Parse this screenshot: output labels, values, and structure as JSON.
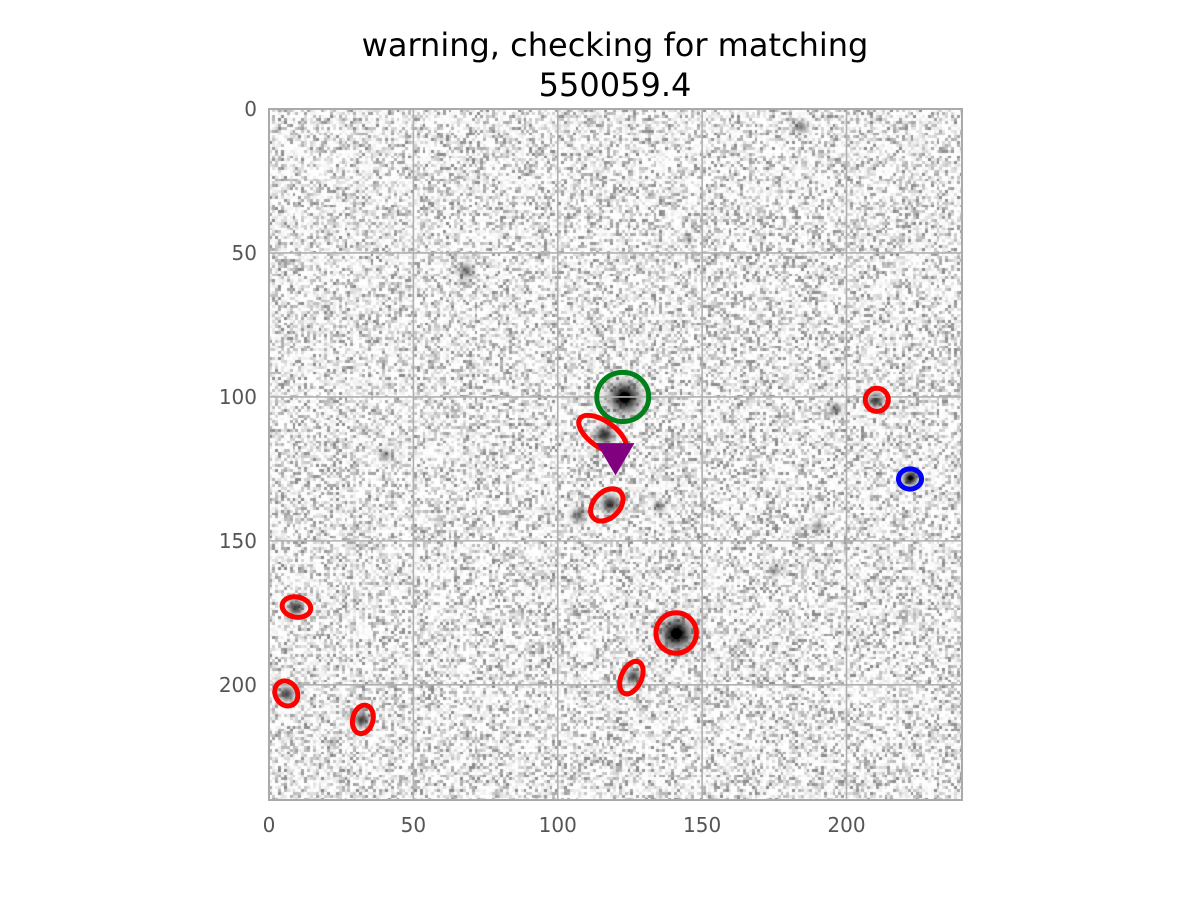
{
  "chart_data": {
    "type": "scatter",
    "title": "warning, checking for matching",
    "subtitle": "550059.4",
    "xlabel": "",
    "ylabel": "",
    "xlim": [
      0,
      240
    ],
    "ylim": [
      240,
      0
    ],
    "y_inverted": true,
    "grid": true,
    "x_ticks": [
      0,
      50,
      100,
      150,
      200
    ],
    "y_ticks": [
      0,
      50,
      100,
      150,
      200
    ],
    "background": "grayscale noise image",
    "stars": [
      {
        "x": 123,
        "y": 100,
        "r": 5,
        "dark": 1.0
      },
      {
        "x": 141,
        "y": 182,
        "r": 5,
        "dark": 1.0
      },
      {
        "x": 116,
        "y": 113,
        "r": 3,
        "dark": 0.8
      },
      {
        "x": 118,
        "y": 137,
        "r": 3,
        "dark": 0.75
      },
      {
        "x": 210,
        "y": 101,
        "r": 2.5,
        "dark": 0.75
      },
      {
        "x": 222,
        "y": 128,
        "r": 2.5,
        "dark": 0.95
      },
      {
        "x": 9,
        "y": 173,
        "r": 2.5,
        "dark": 0.75
      },
      {
        "x": 6,
        "y": 203,
        "r": 2.5,
        "dark": 0.7
      },
      {
        "x": 32,
        "y": 212,
        "r": 2.5,
        "dark": 0.7
      },
      {
        "x": 126,
        "y": 197,
        "r": 2.5,
        "dark": 0.7
      },
      {
        "x": 68,
        "y": 56,
        "r": 2.5,
        "dark": 0.5
      },
      {
        "x": 184,
        "y": 6,
        "r": 2,
        "dark": 0.5
      },
      {
        "x": 196,
        "y": 104,
        "r": 2,
        "dark": 0.5
      },
      {
        "x": 40,
        "y": 120,
        "r": 2,
        "dark": 0.4
      },
      {
        "x": 107,
        "y": 141,
        "r": 2.5,
        "dark": 0.5
      },
      {
        "x": 135,
        "y": 138,
        "r": 2,
        "dark": 0.4
      },
      {
        "x": 175,
        "y": 160,
        "r": 2,
        "dark": 0.35
      },
      {
        "x": 190,
        "y": 145,
        "r": 2,
        "dark": 0.35
      },
      {
        "x": 145,
        "y": 45,
        "r": 1.5,
        "dark": 0.3
      }
    ],
    "ellipses": [
      {
        "color": "#00801a",
        "cx": 122.5,
        "cy": 100,
        "rx": 9,
        "ry": 8.5,
        "angle": 0
      },
      {
        "color": "#ff0000",
        "cx": 141,
        "cy": 182,
        "rx": 7,
        "ry": 7,
        "angle": 0
      },
      {
        "color": "#ff0000",
        "cx": 115.5,
        "cy": 113,
        "rx": 9.5,
        "ry": 4.5,
        "angle": 35
      },
      {
        "color": "#ff0000",
        "cx": 117,
        "cy": 137.5,
        "rx": 6.5,
        "ry": 4.5,
        "angle": -45
      },
      {
        "color": "#ff0000",
        "cx": 210.5,
        "cy": 101,
        "rx": 4,
        "ry": 4,
        "angle": 0
      },
      {
        "color": "#0000ff",
        "cx": 222,
        "cy": 128.5,
        "rx": 4,
        "ry": 3.5,
        "angle": 0
      },
      {
        "color": "#ff0000",
        "cx": 9.5,
        "cy": 173,
        "rx": 5,
        "ry": 3.5,
        "angle": 10
      },
      {
        "color": "#ff0000",
        "cx": 6,
        "cy": 203,
        "rx": 3.8,
        "ry": 4.5,
        "angle": -30
      },
      {
        "color": "#ff0000",
        "cx": 32.5,
        "cy": 212,
        "rx": 3.5,
        "ry": 5,
        "angle": 15
      },
      {
        "color": "#ff0000",
        "cx": 125.5,
        "cy": 197.5,
        "rx": 3.5,
        "ry": 6,
        "angle": 25
      }
    ],
    "marker": {
      "shape": "triangle-down",
      "color": "#800080",
      "x": 120,
      "y": 121
    }
  }
}
